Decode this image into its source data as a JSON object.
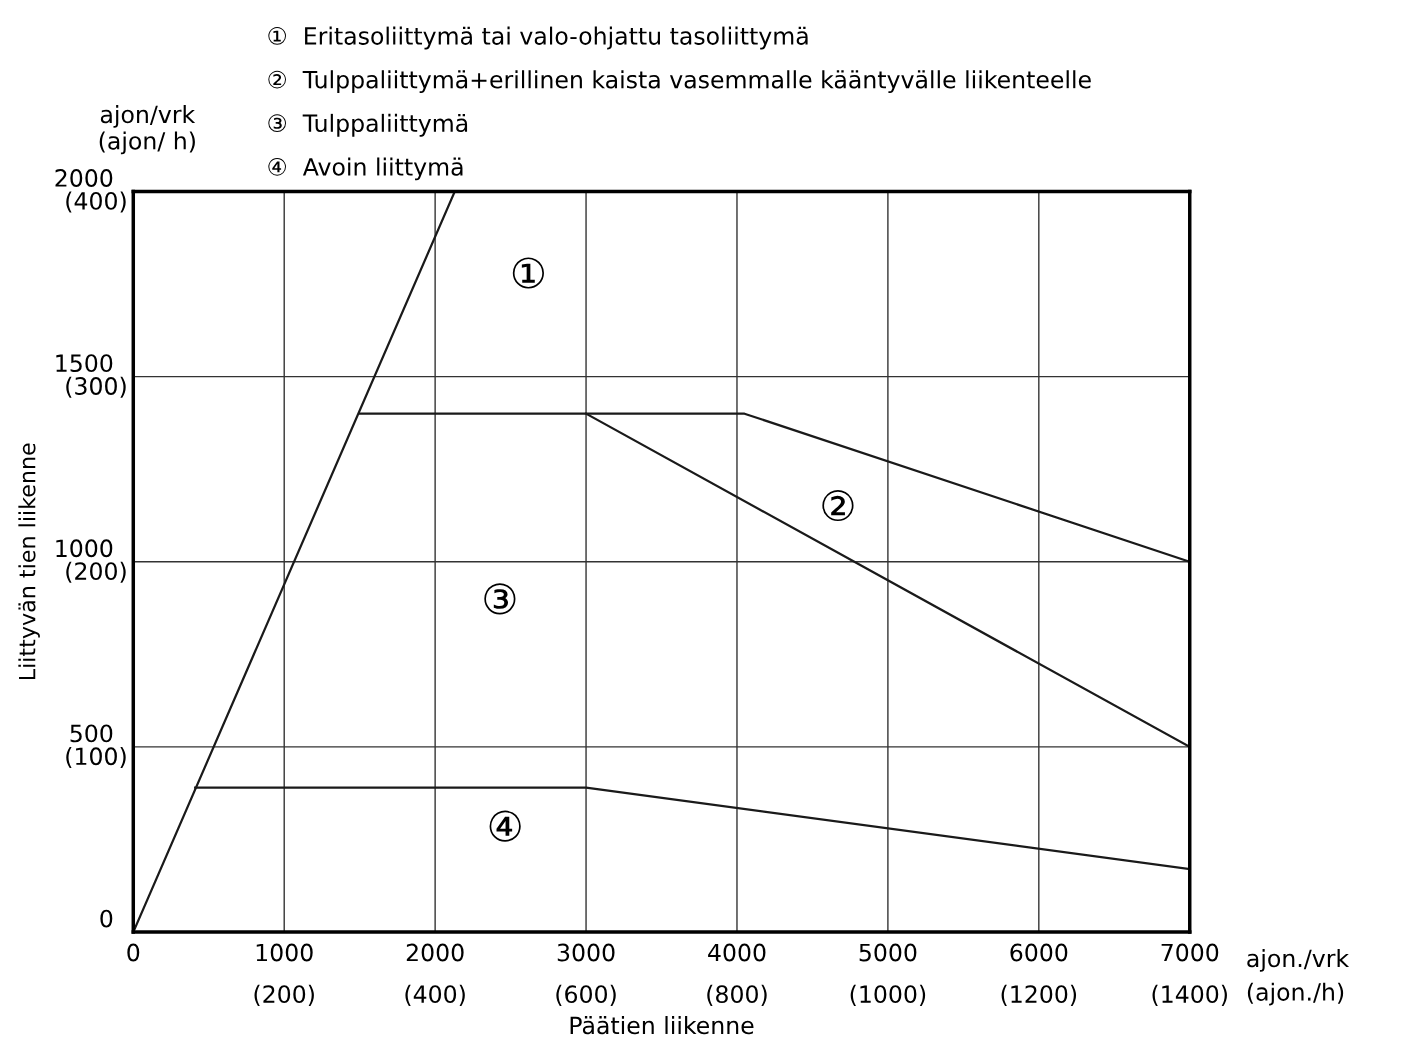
{
  "chart_data": {
    "type": "line",
    "xlabel": "Päätien liikenne",
    "ylabel": "Liittyvän tien liikenne",
    "xlim": [
      0,
      7000
    ],
    "ylim": [
      0,
      2000
    ],
    "xticks": [
      0,
      1000,
      2000,
      3000,
      4000,
      5000,
      6000,
      7000
    ],
    "yticks": [
      0,
      500,
      1000,
      1500,
      2000
    ],
    "x2lim": [
      0,
      1400
    ],
    "x2ticks": [
      {
        "value": 0,
        "label": null
      },
      {
        "value": 200,
        "label": "(200)"
      },
      {
        "value": 400,
        "label": "(400)"
      },
      {
        "value": 600,
        "label": "(600)"
      },
      {
        "value": 800,
        "label": "(800)"
      },
      {
        "value": 1000,
        "label": "(1000)"
      },
      {
        "value": 1200,
        "label": "(1200)"
      },
      {
        "value": 1400,
        "label": "(1400)"
      }
    ],
    "y2lim": [
      0,
      400
    ],
    "y2ticks": [
      {
        "value": 0,
        "label": null
      },
      {
        "value": 100,
        "label": "(100)"
      },
      {
        "value": 200,
        "label": "(200)"
      },
      {
        "value": 300,
        "label": "(300)"
      },
      {
        "value": 400,
        "label": "(400)"
      }
    ],
    "grid": true,
    "marker": "none",
    "line_style": "solid",
    "series": [
      {
        "color": "#1a1a1a",
        "x": [
          0,
          2130
        ],
        "values": [
          0,
          2000
        ]
      },
      {
        "color": "#1a1a1a",
        "x": [
          1500,
          3000,
          4050,
          7000
        ],
        "values": [
          1400,
          1400,
          1400,
          1000
        ]
      },
      {
        "color": "#1a1a1a",
        "x": [
          3000,
          7000
        ],
        "values": [
          1400,
          500
        ]
      },
      {
        "color": "#1a1a1a",
        "x": [
          410,
          3000,
          7000
        ],
        "values": [
          390,
          390,
          170
        ]
      }
    ],
    "annotations": [
      "①  Eritasoliittymä tai valo-ohjattu tasoliittymä",
      "②  Tulppaliittymä+erillinen kaista vasemmalle kääntyvälle liikenteelle",
      "③  Tulppaliittymä",
      "④  Avoin liittymä",
      "ajon/vrk\n(ajon/ h)",
      "ajon./vrk\n(ajon./h)",
      "①",
      "②",
      "③",
      "④"
    ]
  }
}
